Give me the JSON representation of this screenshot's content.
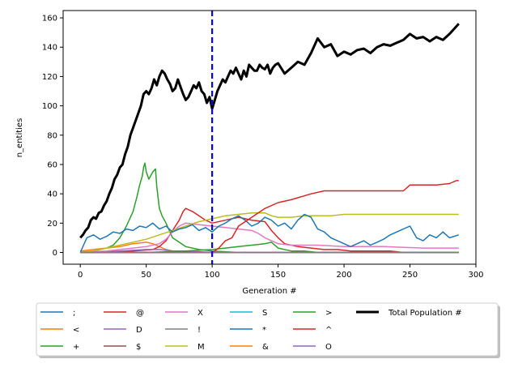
{
  "chart_data": {
    "type": "line",
    "xlabel": "Generation #",
    "ylabel": "n_entities",
    "xlim": [
      -13,
      300
    ],
    "ylim": [
      -8,
      165
    ],
    "xticks": [
      0,
      50,
      100,
      150,
      200,
      250,
      300
    ],
    "yticks": [
      0,
      20,
      40,
      60,
      80,
      100,
      120,
      140,
      160
    ],
    "marker_line": {
      "x": 100,
      "color": "#0000ff",
      "style": "dashed"
    },
    "legend": {
      "placement": "below",
      "columns": 6
    },
    "series": [
      {
        "name": ";",
        "color": "#1f77b4",
        "x": [
          0,
          287
        ],
        "y": [
          0,
          0
        ]
      },
      {
        "name": "<",
        "color": "#ff7f0e",
        "x": [
          0,
          10,
          20,
          30,
          40,
          50,
          55,
          60,
          65,
          70,
          75,
          80,
          90,
          100,
          120,
          150,
          200,
          250,
          287
        ],
        "y": [
          1,
          2,
          3,
          4,
          6,
          7,
          6,
          4,
          2,
          1,
          1,
          0,
          0,
          0,
          0,
          0,
          0,
          0,
          0
        ]
      },
      {
        "name": "+",
        "color": "#2ca02c",
        "x": [
          0,
          10,
          20,
          25,
          30,
          35,
          40,
          43,
          45,
          47,
          48,
          49,
          50,
          52,
          55,
          57,
          58,
          60,
          62,
          65,
          70,
          80,
          90,
          100,
          120,
          150,
          200,
          287
        ],
        "y": [
          0,
          1,
          3,
          5,
          10,
          18,
          28,
          38,
          46,
          52,
          58,
          61,
          55,
          50,
          55,
          57,
          45,
          30,
          25,
          20,
          10,
          4,
          2,
          1,
          0,
          0,
          0,
          0
        ]
      },
      {
        "name": "@",
        "color": "#d62728",
        "x": [
          0,
          20,
          40,
          55,
          60,
          65,
          70,
          75,
          78,
          80,
          85,
          90,
          95,
          100,
          110,
          120,
          125,
          130,
          140,
          145,
          150,
          155,
          165,
          175,
          185,
          195,
          205,
          220,
          235,
          245,
          250,
          260,
          270,
          280,
          287
        ],
        "y": [
          0,
          0,
          1,
          2,
          4,
          8,
          15,
          22,
          28,
          30,
          28,
          25,
          22,
          20,
          22,
          24,
          23,
          22,
          21,
          15,
          10,
          6,
          4,
          3,
          2,
          2,
          1,
          1,
          1,
          0,
          0,
          0,
          0,
          0,
          0
        ]
      },
      {
        "name": "D",
        "color": "#9467bd",
        "x": [
          0,
          30,
          50,
          60,
          70,
          80,
          100,
          150,
          287
        ],
        "y": [
          0,
          1,
          2,
          2,
          1,
          1,
          0,
          0,
          0
        ]
      },
      {
        "name": "$",
        "color": "#8c564b",
        "x": [
          0,
          287
        ],
        "y": [
          0,
          0
        ]
      },
      {
        "name": "X",
        "color": "#e377c2",
        "x": [
          0,
          20,
          30,
          40,
          50,
          60,
          65,
          70,
          75,
          80,
          90,
          100,
          110,
          120,
          130,
          135,
          140,
          145,
          150,
          160,
          170,
          180,
          200,
          230,
          260,
          287
        ],
        "y": [
          0,
          1,
          2,
          3,
          4,
          6,
          9,
          14,
          18,
          20,
          19,
          18,
          17,
          16,
          15,
          13,
          10,
          8,
          6,
          5,
          5,
          5,
          4,
          4,
          3,
          3
        ]
      },
      {
        "name": "!",
        "color": "#7f7f7f",
        "x": [
          0,
          287
        ],
        "y": [
          0,
          0
        ]
      },
      {
        "name": "M",
        "color": "#bcbd22",
        "x": [
          0,
          10,
          20,
          30,
          40,
          50,
          60,
          70,
          80,
          90,
          100,
          110,
          120,
          130,
          140,
          145,
          150,
          160,
          170,
          180,
          190,
          200,
          250,
          287
        ],
        "y": [
          0,
          1,
          3,
          5,
          7,
          9,
          12,
          15,
          18,
          21,
          23,
          25,
          26,
          27,
          27,
          25,
          24,
          24,
          25,
          25,
          25,
          26,
          26,
          26
        ]
      },
      {
        "name": "S",
        "color": "#17becf",
        "x": [
          0,
          287
        ],
        "y": [
          0,
          0
        ]
      },
      {
        "name": "*",
        "color": "#1f77b4",
        "x": [
          0,
          5,
          10,
          15,
          20,
          25,
          30,
          35,
          40,
          45,
          50,
          55,
          60,
          65,
          70,
          75,
          80,
          85,
          90,
          95,
          100,
          105,
          110,
          115,
          120,
          125,
          130,
          135,
          140,
          145,
          150,
          155,
          160,
          165,
          170,
          175,
          180,
          185,
          190,
          195,
          200,
          205,
          210,
          215,
          220,
          225,
          230,
          235,
          240,
          245,
          250,
          255,
          260,
          265,
          270,
          275,
          280,
          287
        ],
        "y": [
          0,
          10,
          12,
          9,
          11,
          14,
          13,
          16,
          15,
          18,
          17,
          20,
          16,
          18,
          14,
          16,
          17,
          19,
          15,
          17,
          14,
          18,
          20,
          23,
          25,
          22,
          18,
          20,
          24,
          22,
          18,
          20,
          16,
          22,
          26,
          24,
          16,
          14,
          10,
          8,
          6,
          4,
          6,
          8,
          5,
          7,
          9,
          12,
          14,
          16,
          18,
          10,
          8,
          12,
          10,
          14,
          10,
          12
        ]
      },
      {
        "name": "&",
        "color": "#ff7f0e",
        "x": [
          0,
          287
        ],
        "y": [
          0,
          0
        ]
      },
      {
        "name": ">",
        "color": "#2ca02c",
        "x": [
          0,
          50,
          80,
          100,
          110,
          120,
          130,
          140,
          145,
          150,
          160,
          170,
          180,
          200,
          250,
          287
        ],
        "y": [
          0,
          0,
          1,
          2,
          3,
          4,
          5,
          6,
          7,
          3,
          1,
          1,
          0,
          0,
          0,
          0
        ]
      },
      {
        "name": "^",
        "color": "#d62728",
        "x": [
          0,
          50,
          80,
          100,
          105,
          110,
          115,
          120,
          130,
          140,
          150,
          160,
          175,
          185,
          195,
          200,
          220,
          245,
          250,
          260,
          270,
          280,
          285,
          287
        ],
        "y": [
          0,
          0,
          0,
          0,
          3,
          8,
          10,
          18,
          24,
          30,
          34,
          36,
          40,
          42,
          42,
          42,
          42,
          42,
          46,
          46,
          46,
          47,
          49,
          49
        ]
      },
      {
        "name": "O",
        "color": "#9467bd",
        "x": [
          0,
          287
        ],
        "y": [
          0,
          0
        ]
      },
      {
        "name": "Total Population #",
        "color": "#000000",
        "width": 3,
        "x": [
          0,
          2,
          4,
          6,
          8,
          10,
          12,
          14,
          16,
          18,
          20,
          22,
          24,
          26,
          28,
          30,
          32,
          34,
          36,
          38,
          40,
          42,
          44,
          46,
          48,
          50,
          52,
          54,
          56,
          58,
          60,
          62,
          64,
          66,
          68,
          70,
          72,
          74,
          76,
          78,
          80,
          82,
          84,
          86,
          88,
          90,
          92,
          94,
          96,
          98,
          100,
          102,
          104,
          106,
          108,
          110,
          112,
          114,
          116,
          118,
          120,
          122,
          124,
          126,
          128,
          130,
          132,
          134,
          136,
          138,
          140,
          142,
          144,
          146,
          148,
          150,
          155,
          160,
          165,
          170,
          175,
          180,
          185,
          190,
          195,
          200,
          205,
          210,
          215,
          220,
          225,
          230,
          235,
          240,
          245,
          250,
          255,
          260,
          265,
          270,
          275,
          280,
          285,
          287
        ],
        "y": [
          10,
          12,
          15,
          17,
          22,
          24,
          23,
          27,
          28,
          32,
          35,
          40,
          44,
          50,
          53,
          58,
          60,
          67,
          72,
          80,
          85,
          90,
          95,
          100,
          108,
          110,
          108,
          112,
          118,
          114,
          120,
          124,
          122,
          118,
          115,
          110,
          112,
          118,
          113,
          108,
          104,
          106,
          110,
          114,
          112,
          116,
          110,
          108,
          102,
          106,
          98,
          104,
          110,
          114,
          118,
          116,
          120,
          124,
          122,
          126,
          122,
          118,
          124,
          120,
          128,
          126,
          124,
          124,
          128,
          126,
          125,
          128,
          122,
          126,
          128,
          129,
          122,
          126,
          130,
          128,
          136,
          146,
          140,
          142,
          134,
          137,
          135,
          138,
          139,
          136,
          140,
          142,
          141,
          143,
          145,
          149,
          146,
          147,
          144,
          147,
          145,
          149,
          154,
          156
        ]
      }
    ]
  }
}
